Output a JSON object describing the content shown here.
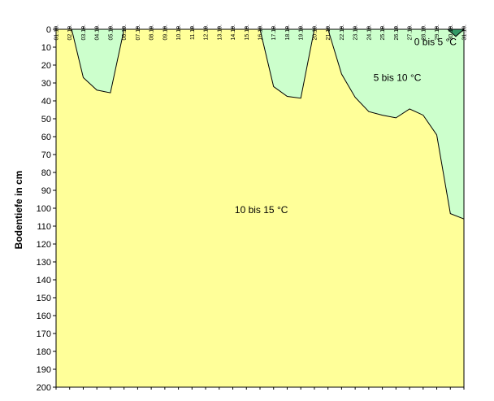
{
  "chart_data": {
    "type": "area",
    "title": "",
    "xlabel": "",
    "ylabel": "Bodentiefe in cm",
    "categories": [
      "01.10.",
      "02.10.",
      "03.10.",
      "04.10.",
      "05.10.",
      "06.10.",
      "07.10.",
      "08.10.",
      "09.10.",
      "10.10.",
      "11.10.",
      "12.10.",
      "13.10.",
      "14.10.",
      "15.10.",
      "16.10.",
      "17.10.",
      "18.10.",
      "19.10.",
      "20.10.",
      "21.10.",
      "22.10.",
      "23.10.",
      "24.10.",
      "25.10.",
      "26.10.",
      "27.10.",
      "28.10.",
      "29.10.",
      "30.10.",
      "31.10."
    ],
    "yticks": [
      0,
      10,
      20,
      30,
      40,
      50,
      60,
      70,
      80,
      90,
      100,
      110,
      120,
      130,
      140,
      150,
      160,
      170,
      180,
      190,
      200
    ],
    "ylim": [
      0,
      200
    ],
    "y_inverted": true,
    "grid": false,
    "boundaries": [
      {
        "name": "10 °C",
        "segments": [
          [
            [
              1.15,
              0
            ],
            [
              2,
              27
            ],
            [
              3,
              34
            ],
            [
              4,
              35.5
            ],
            [
              5,
              0
            ]
          ],
          [
            [
              15.0,
              0
            ],
            [
              16,
              32
            ],
            [
              17,
              37.5
            ],
            [
              18,
              38.5
            ],
            [
              19,
              0
            ]
          ],
          [
            [
              20.0,
              0
            ],
            [
              21,
              25
            ],
            [
              22,
              38
            ],
            [
              23,
              46
            ],
            [
              24,
              48
            ],
            [
              25,
              49.5
            ],
            [
              26,
              44.5
            ],
            [
              27,
              48
            ],
            [
              28,
              59
            ],
            [
              29,
              103
            ],
            [
              30,
              106
            ]
          ]
        ]
      },
      {
        "name": "5 °C",
        "segments": [
          [
            [
              28.8,
              0
            ],
            [
              29.4,
              4
            ],
            [
              30,
              0
            ]
          ]
        ]
      }
    ],
    "zones": [
      {
        "label": "10 bis 15 °C",
        "color": "#ffff99",
        "label_x": 15.1,
        "label_y": 101
      },
      {
        "label": "5 bis 10 °C",
        "color": "#ccffcc",
        "label_x": 25.1,
        "label_y": 27
      },
      {
        "label": "0 bis 5 °C",
        "color": "#339966",
        "label_x": 27.9,
        "label_y": 7
      }
    ],
    "colors": {
      "line": "#000000",
      "background": "#ffffff"
    }
  }
}
